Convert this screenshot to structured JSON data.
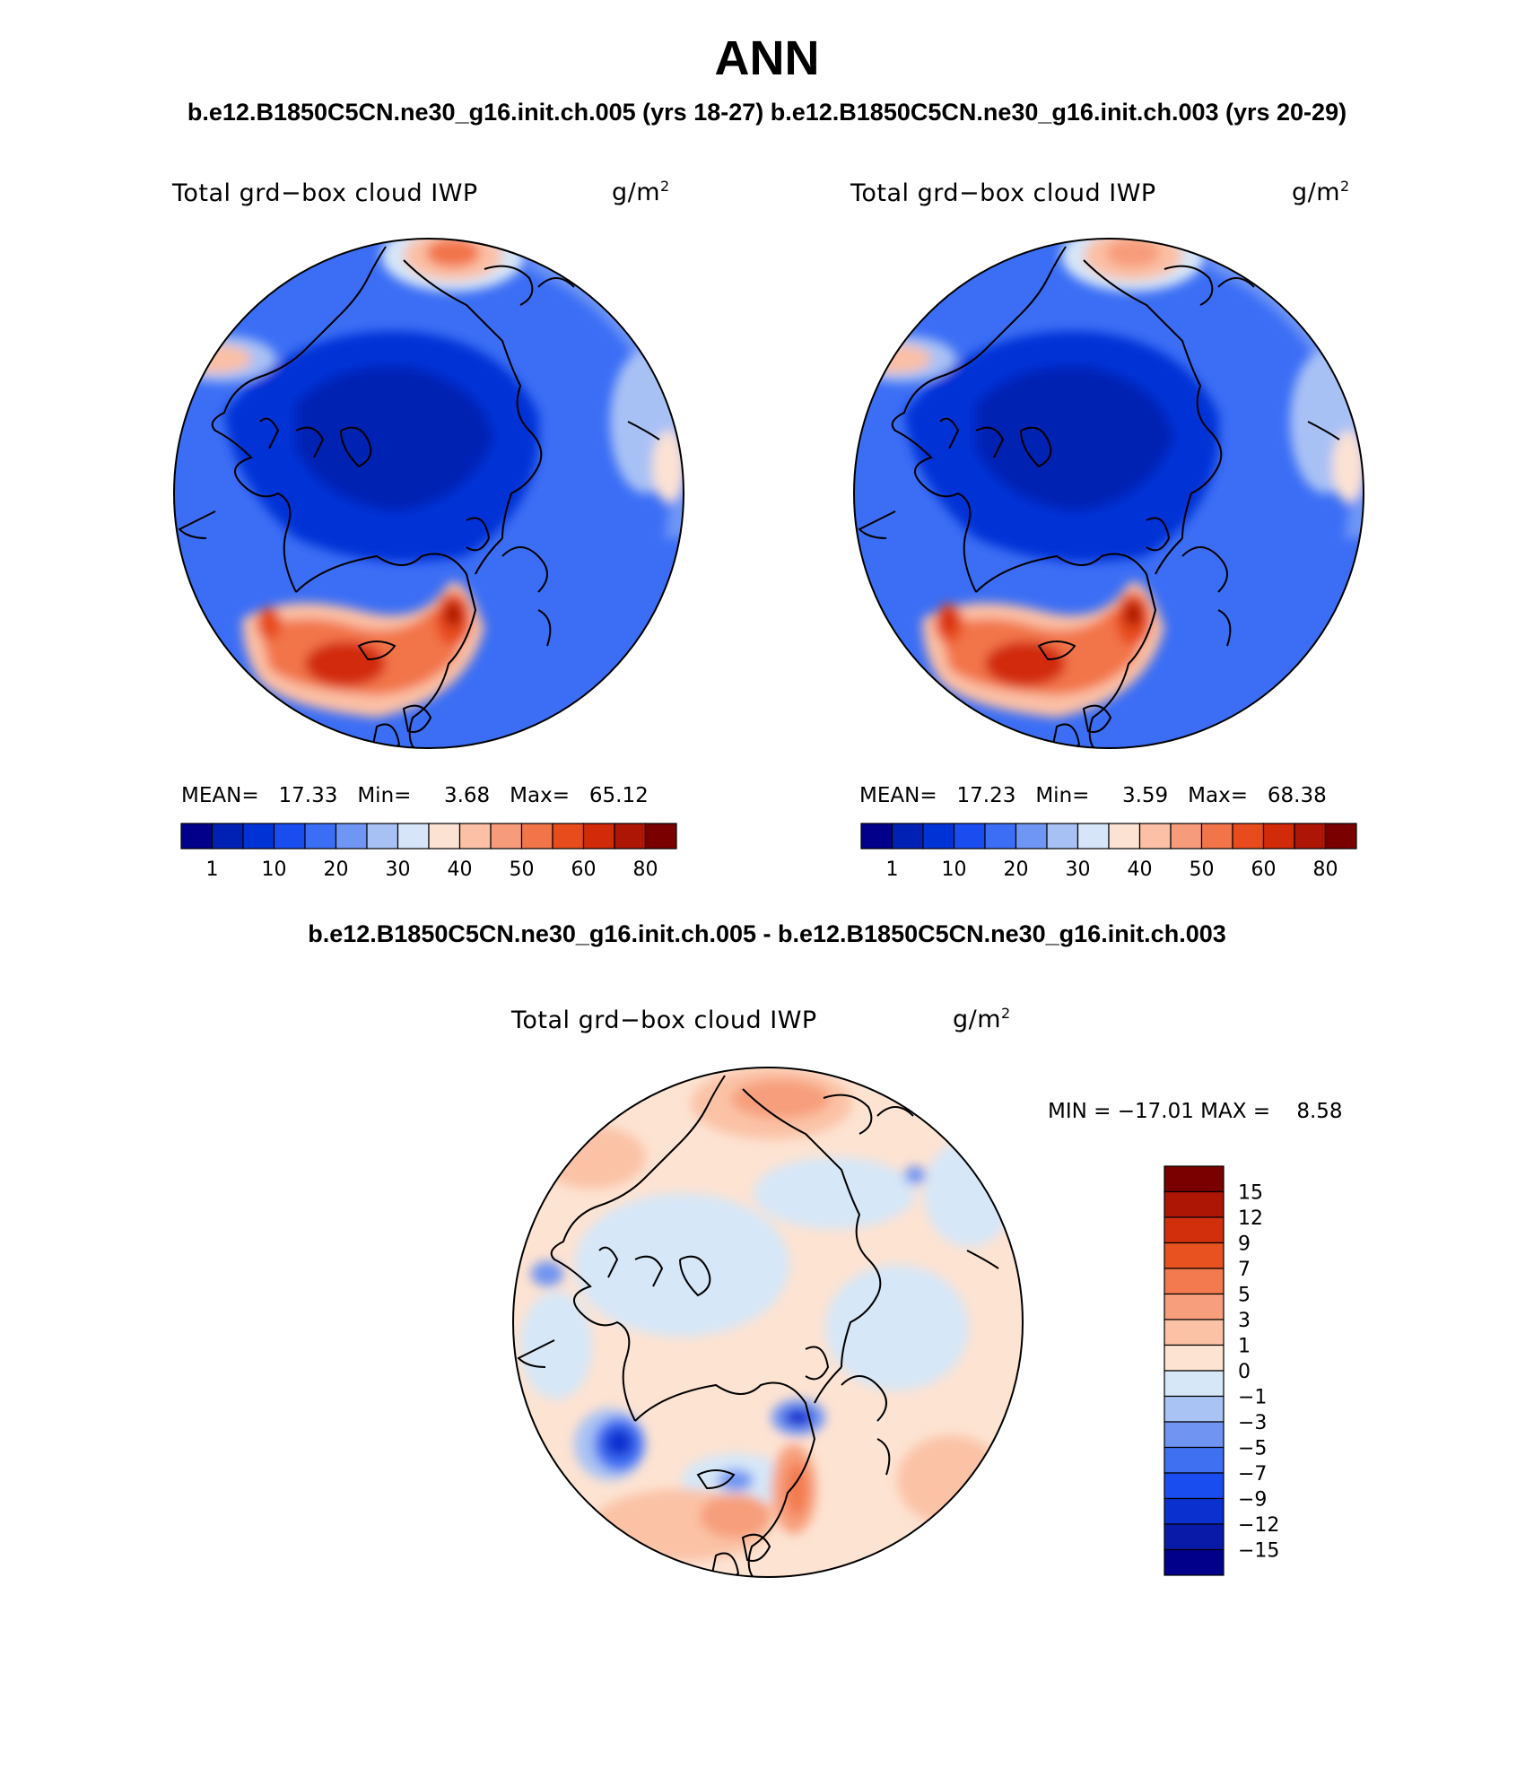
{
  "title": "ANN",
  "subtitle": "b.e12.B1850C5CN.ne30_g16.init.ch.005 (yrs 18-27) b.e12.B1850C5CN.ne30_g16.init.ch.003 (yrs 20-29)",
  "diff_title": "b.e12.B1850C5CN.ne30_g16.init.ch.005 - b.e12.B1850C5CN.ne30_g16.init.ch.003",
  "colors": {
    "abs_scale": [
      "#00008b",
      "#0021b3",
      "#0033d6",
      "#1a4df0",
      "#3b6ef5",
      "#7096f5",
      "#a8c1f5",
      "#d6e6f8",
      "#fbe2d3",
      "#fbc0a5",
      "#f79c7a",
      "#f27549",
      "#e84b1c",
      "#d22b0a",
      "#ad1505",
      "#7a0000"
    ],
    "diff_scale": [
      "#00008b",
      "#0a1aa8",
      "#0a30d0",
      "#1a4df0",
      "#3f70f2",
      "#6f94f2",
      "#a9c3f4",
      "#d6e7f8",
      "#fde3d2",
      "#fbc2a6",
      "#f79f7c",
      "#f27a4e",
      "#e85220",
      "#d2300c",
      "#ad1505",
      "#7a0000"
    ]
  },
  "panels": [
    {
      "field": "Total grd−box cloud IWP",
      "units_base": "g/m",
      "units_exp": "2",
      "stats": {
        "mean_label": "MEAN=",
        "mean": "17.33",
        "min_label": "Min=",
        "min": "3.68",
        "max_label": "Max=",
        "max": "65.12"
      },
      "colorbar_labels": [
        "1",
        "10",
        "20",
        "30",
        "40",
        "50",
        "60",
        "80"
      ]
    },
    {
      "field": "Total grd−box cloud IWP",
      "units_base": "g/m",
      "units_exp": "2",
      "stats": {
        "mean_label": "MEAN=",
        "mean": "17.23",
        "min_label": "Min=",
        "min": "3.59",
        "max_label": "Max=",
        "max": "68.38"
      },
      "colorbar_labels": [
        "1",
        "10",
        "20",
        "30",
        "40",
        "50",
        "60",
        "80"
      ]
    }
  ],
  "diff_panel": {
    "field": "Total grd−box cloud IWP",
    "units_base": "g/m",
    "units_exp": "2",
    "minmax": {
      "min_label": "MIN =",
      "min": "−17.01",
      "max_label": "MAX =",
      "max": "8.58"
    },
    "colorbar_labels": [
      "15",
      "12",
      "9",
      "7",
      "5",
      "3",
      "1",
      "0",
      "−1",
      "−3",
      "−5",
      "−7",
      "−9",
      "−12",
      "−15"
    ]
  }
}
